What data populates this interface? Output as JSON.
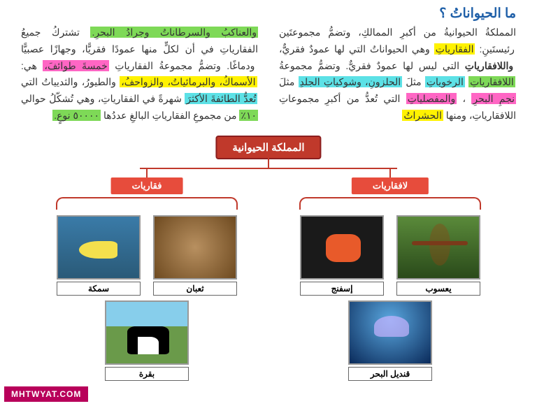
{
  "title": "ما الحيواناتُ ؟",
  "text_right": {
    "seg1": "المملكةُ الحيوانيةُ من أكبرِ الممالكِ، وتضمُّ مجموعتَين رئيستَينِ: ",
    "hl_yellow1": "الفقارياتِ",
    "seg2": " وهي الحيواناتُ التي لها عمودٌ فقريٌّ، ",
    "bold1": "واللافقارياتِ",
    "seg3": " التي ليس لها عمودٌ فقريٌّ. وتضمُّ مجموعةُ ",
    "hl_green1": "اللافقارياتِ",
    "seg4": " ",
    "hl_cyan1": "الرخوياتِ",
    "seg5": " مثلَ ",
    "hl_cyan2": "الحلزونِ، وشوكياتِ الجلدِ",
    "seg6": " مثلَ ",
    "hl_pink1": "نجمِ البحرِ",
    "seg7": "، ",
    "hl_pink2": "والمفصلياتِ",
    "seg8": " التي تُعدُّ من أكبرِ مجموعاتِ اللافقارياتِ، ومنها ",
    "hl_yellow2": "الحشراتُ"
  },
  "text_left": {
    "hl_green1": "والعناكبُ والسرطاناتُ وجرادُ البحرِ.",
    "seg1": " تشتركُ جميعُ الفقارياتِ في أن لكلٍّ منها عمودًا فقريًّا، وجهازًا عصبيًّا ودماغًا. وتضمُّ مجموعةُ الفقارياتِ ",
    "hl_pink1": "خمسةَ طوائفَ،",
    "seg2": " هي: ",
    "hl_yellow1": "الأسماكُ، والبرمائياتُ، والزواحفُ،",
    "seg3": " والطيورُ، والثديياتُ التي ",
    "hl_cyan1": "تُعدُّ الطائفةَ الأكثرَ",
    "seg4": " شهرةً في الفقارياتِ، وهي تُشكّلُ حوالي ",
    "hl_green2": "١٠٪",
    "seg5": " من مجموعِ الفقارياتِ البالغِ عددُها ",
    "hl_green3": "٥٠٠٠٠ نوعٍ."
  },
  "diagram": {
    "root": "المملكة الحيوانية",
    "group_invert": "لافقاريات",
    "group_vert": "فقاريات",
    "labels": {
      "fish": "سمكة",
      "snake": "ثعبان",
      "sponge": "إسفنج",
      "dragonfly": "يعسوب",
      "cow": "بقرة",
      "jellyfish": "قنديل البحر"
    }
  },
  "watermark": "MHTWYAT.COM",
  "colors": {
    "title": "#1e5fa8",
    "root_bg": "#c0392b",
    "group_bg": "#e74c3c",
    "wm_bg": "#b8005a"
  }
}
